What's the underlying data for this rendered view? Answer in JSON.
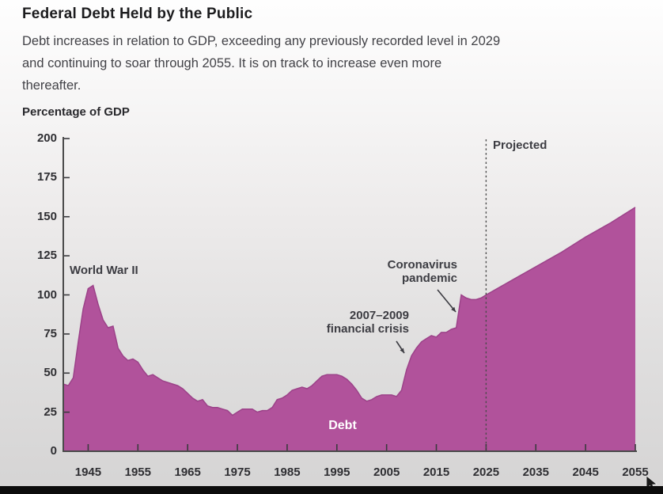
{
  "title": "Federal Debt Held by the Public",
  "subtitle_lines": [
    "Debt increases in relation to GDP, exceeding any previously recorded level in 2029",
    "and continuing to soar through 2055. It is on track to increase even more",
    "thereafter."
  ],
  "axis_unit_label": "Percentage of GDP",
  "annotations": {
    "world_war_2": "World War II",
    "financial_crisis_line1": "2007–2009",
    "financial_crisis_line2": "financial crisis",
    "pandemic_line1": "Coronavirus",
    "pandemic_line2": "pandemic",
    "projected": "Projected",
    "series_label": "Debt"
  },
  "colors": {
    "area_fill": "#b1529b",
    "area_stroke": "#9c4289",
    "axis": "#4a4a4a",
    "tick": "#3a3a3e",
    "dashed_line": "#4a4a4a",
    "arrow": "#3c3c42",
    "bottom_bar": "#0c0c0c",
    "cursor": "#1a1a1a"
  },
  "chart_data": {
    "type": "area",
    "title": "Federal Debt Held by the Public",
    "ylabel": "Percentage of GDP",
    "xlabel": "",
    "ylim": [
      0,
      200
    ],
    "xlim": [
      1940,
      2055
    ],
    "yticks": [
      0,
      25,
      50,
      75,
      100,
      125,
      150,
      175,
      200
    ],
    "xticks": [
      1945,
      1955,
      1965,
      1975,
      1985,
      1995,
      2005,
      2015,
      2025,
      2035,
      2045,
      2055
    ],
    "grid": false,
    "legend_position": "in-plot",
    "projection_start_year": 2025,
    "series": [
      {
        "name": "Debt",
        "points": [
          [
            1940,
            43
          ],
          [
            1941,
            42
          ],
          [
            1942,
            47
          ],
          [
            1943,
            70
          ],
          [
            1944,
            91
          ],
          [
            1945,
            104
          ],
          [
            1946,
            106
          ],
          [
            1947,
            94
          ],
          [
            1948,
            84
          ],
          [
            1949,
            79
          ],
          [
            1950,
            80
          ],
          [
            1951,
            66
          ],
          [
            1952,
            61
          ],
          [
            1953,
            58
          ],
          [
            1954,
            59
          ],
          [
            1955,
            57
          ],
          [
            1956,
            52
          ],
          [
            1957,
            48
          ],
          [
            1958,
            49
          ],
          [
            1959,
            47
          ],
          [
            1960,
            45
          ],
          [
            1961,
            44
          ],
          [
            1962,
            43
          ],
          [
            1963,
            42
          ],
          [
            1964,
            40
          ],
          [
            1965,
            37
          ],
          [
            1966,
            34
          ],
          [
            1967,
            32
          ],
          [
            1968,
            33
          ],
          [
            1969,
            29
          ],
          [
            1970,
            28
          ],
          [
            1971,
            28
          ],
          [
            1972,
            27
          ],
          [
            1973,
            26
          ],
          [
            1974,
            23
          ],
          [
            1975,
            25
          ],
          [
            1976,
            27
          ],
          [
            1977,
            27
          ],
          [
            1978,
            27
          ],
          [
            1979,
            25
          ],
          [
            1980,
            26
          ],
          [
            1981,
            26
          ],
          [
            1982,
            28
          ],
          [
            1983,
            33
          ],
          [
            1984,
            34
          ],
          [
            1985,
            36
          ],
          [
            1986,
            39
          ],
          [
            1987,
            40
          ],
          [
            1988,
            41
          ],
          [
            1989,
            40
          ],
          [
            1990,
            42
          ],
          [
            1991,
            45
          ],
          [
            1992,
            48
          ],
          [
            1993,
            49
          ],
          [
            1994,
            49
          ],
          [
            1995,
            49
          ],
          [
            1996,
            48
          ],
          [
            1997,
            46
          ],
          [
            1998,
            43
          ],
          [
            1999,
            39
          ],
          [
            2000,
            34
          ],
          [
            2001,
            32
          ],
          [
            2002,
            33
          ],
          [
            2003,
            35
          ],
          [
            2004,
            36
          ],
          [
            2005,
            36
          ],
          [
            2006,
            36
          ],
          [
            2007,
            35
          ],
          [
            2008,
            39
          ],
          [
            2009,
            52
          ],
          [
            2010,
            61
          ],
          [
            2011,
            66
          ],
          [
            2012,
            70
          ],
          [
            2013,
            72
          ],
          [
            2014,
            74
          ],
          [
            2015,
            73
          ],
          [
            2016,
            76
          ],
          [
            2017,
            76
          ],
          [
            2018,
            78
          ],
          [
            2019,
            79
          ],
          [
            2020,
            100
          ],
          [
            2021,
            98
          ],
          [
            2022,
            97
          ],
          [
            2023,
            97
          ],
          [
            2024,
            98
          ],
          [
            2025,
            100
          ],
          [
            2030,
            109
          ],
          [
            2035,
            118
          ],
          [
            2040,
            127
          ],
          [
            2045,
            137
          ],
          [
            2050,
            146
          ],
          [
            2055,
            156
          ]
        ]
      }
    ]
  }
}
